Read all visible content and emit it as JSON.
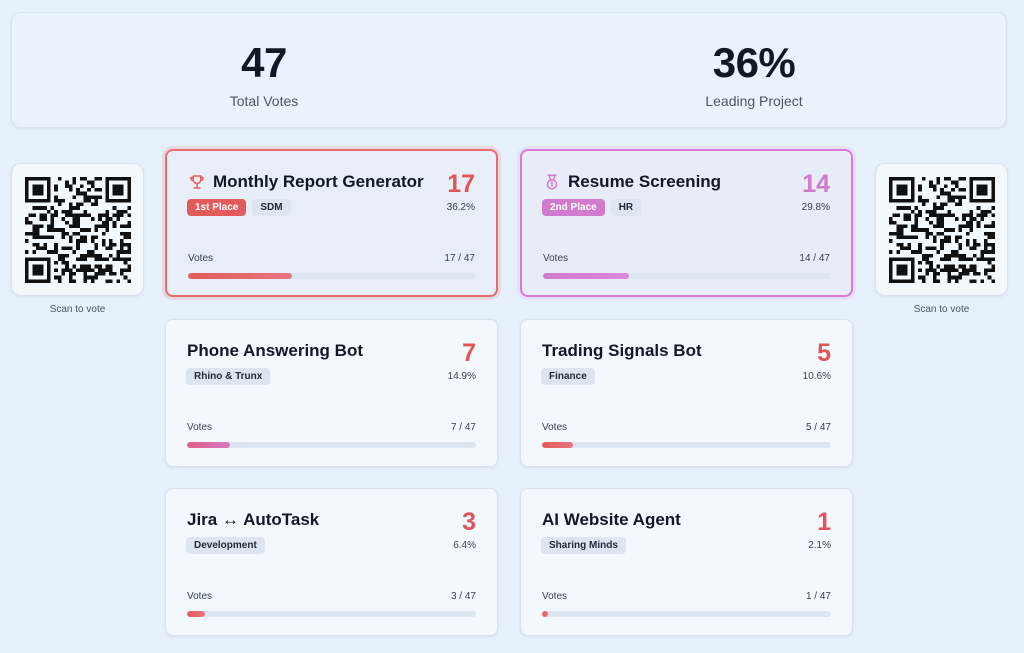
{
  "stats": {
    "total_votes": "47",
    "total_votes_label": "Total Votes",
    "leading_pct": "36%",
    "leading_label": "Leading Project"
  },
  "qr": {
    "caption": "Scan to vote"
  },
  "colors": {
    "first": "#e35a5a",
    "second": "#d27acd",
    "accent_text": "#e05656"
  },
  "cards": [
    {
      "title": "Monthly Report Generator",
      "icon": "trophy-icon",
      "place": "1st Place",
      "tags": [
        "SDM"
      ],
      "count": "17",
      "pct": "36.2%",
      "votes_label": "Votes",
      "ratio": "17 / 47",
      "fraction": 0.362
    },
    {
      "title": "Resume Screening",
      "icon": "medal-icon",
      "place": "2nd Place",
      "tags": [
        "HR"
      ],
      "count": "14",
      "pct": "29.8%",
      "votes_label": "Votes",
      "ratio": "14 / 47",
      "fraction": 0.298
    },
    {
      "title": "Phone Answering Bot",
      "tags": [
        "Rhino & Trunx"
      ],
      "count": "7",
      "pct": "14.9%",
      "votes_label": "Votes",
      "ratio": "7 / 47",
      "fraction": 0.149
    },
    {
      "title": "Trading Signals Bot",
      "tags": [
        "Finance"
      ],
      "count": "5",
      "pct": "10.6%",
      "votes_label": "Votes",
      "ratio": "5 / 47",
      "fraction": 0.106
    },
    {
      "title": "Jira ↔ AutoTask",
      "tags": [
        "Development"
      ],
      "count": "3",
      "pct": "6.4%",
      "votes_label": "Votes",
      "ratio": "3 / 47",
      "fraction": 0.064
    },
    {
      "title": "AI Website Agent",
      "tags": [
        "Sharing Minds"
      ],
      "count": "1",
      "pct": "2.1%",
      "votes_label": "Votes",
      "ratio": "1 / 47",
      "fraction": 0.021
    }
  ]
}
